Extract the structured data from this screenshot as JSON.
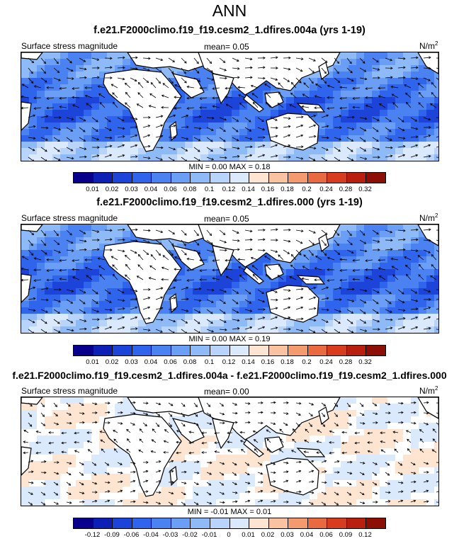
{
  "title": "ANN",
  "colors": {
    "abs": [
      "#08008c",
      "#0d1fb4",
      "#1c44d8",
      "#2f64ec",
      "#4a82f2",
      "#6a9ff5",
      "#8fbaf8",
      "#b8d4fa",
      "#dbe9fc",
      "#fde5d2",
      "#f9c3a2",
      "#f39a6e",
      "#ea6a40",
      "#d83c1f",
      "#b81f0e",
      "#8c0e05"
    ],
    "diff": [
      "#08008c",
      "#0d1fb4",
      "#1c44d8",
      "#2f64ec",
      "#4a82f2",
      "#6a9ff5",
      "#8fbaf8",
      "#b8d4fa",
      "#dbe9fc",
      "#fde5d2",
      "#f9c3a2",
      "#f39a6e",
      "#ea6a40",
      "#d83c1f",
      "#b81f0e",
      "#8c0e05"
    ],
    "land": "#ffffff",
    "coast": "#000000"
  },
  "panels": [
    {
      "title": "f.e21.F2000climo.f19_f19.cesm2_1.dfires.004a (yrs 1-19)",
      "variable": "Surface stress magnitude",
      "mean": "mean=   0.05",
      "units": "N/m",
      "units_exp": "2",
      "minmax": "MIN =   0.00 MAX =   0.18",
      "kind": "abs",
      "colorbar_labels": [
        "0.01",
        "0.02",
        "0.03",
        "0.04",
        "0.06",
        "0.08",
        "0.1",
        "0.12",
        "0.14",
        "0.16",
        "0.18",
        "0.2",
        "0.24",
        "0.28",
        "0.32"
      ]
    },
    {
      "title": "f.e21.F2000climo.f19_f19.cesm2_1.dfires.000 (yrs 1-19)",
      "variable": "Surface stress magnitude",
      "mean": "mean=   0.05",
      "units": "N/m",
      "units_exp": "2",
      "minmax": "MIN =   0.00 MAX =   0.19",
      "kind": "abs",
      "colorbar_labels": [
        "0.01",
        "0.02",
        "0.03",
        "0.04",
        "0.06",
        "0.08",
        "0.1",
        "0.12",
        "0.14",
        "0.16",
        "0.18",
        "0.2",
        "0.24",
        "0.28",
        "0.32"
      ]
    },
    {
      "title": "f.e21.F2000climo.f19_f19.cesm2_1.dfires.004a - f.e21.F2000climo.f19_f19.cesm2_1.dfires.000",
      "variable": "Surface stress magnitude",
      "mean": "mean=   0.00",
      "units": "N/m",
      "units_exp": "2",
      "minmax": "MIN =  -0.01 MAX =   0.01",
      "kind": "diff",
      "colorbar_labels": [
        "-0.12",
        "-0.09",
        "-0.06",
        "-0.04",
        "-0.03",
        "-0.02",
        "-0.01",
        "0",
        "0.01",
        "0.02",
        "0.03",
        "0.04",
        "0.06",
        "0.09",
        "0.12"
      ]
    }
  ]
}
